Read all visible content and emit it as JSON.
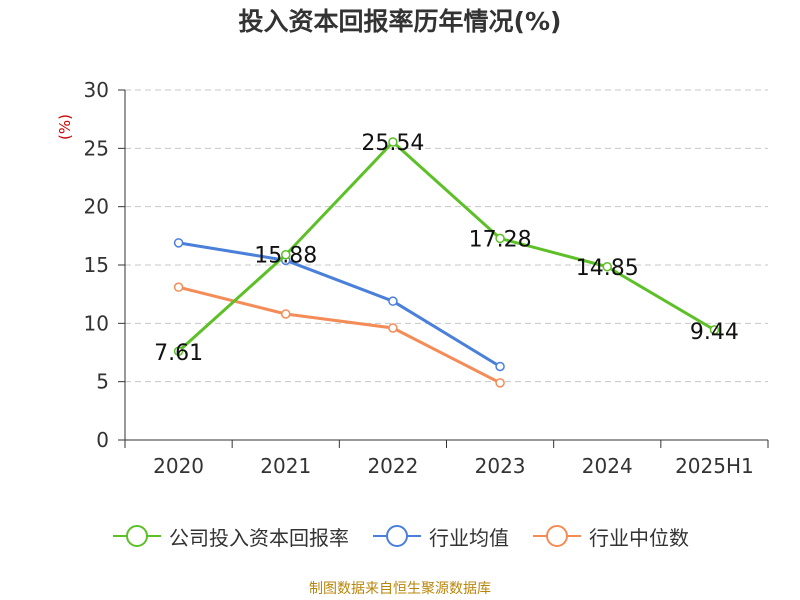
{
  "title": "投入资本回报率历年情况(%)",
  "source": "制图数据来自恒生聚源数据库",
  "chart_data": {
    "type": "line",
    "title": "投入资本回报率历年情况(%)",
    "ylabel": "(%)",
    "xlabel": "",
    "ylim": [
      0,
      30
    ],
    "yticks": [
      0,
      5,
      10,
      15,
      20,
      25,
      30
    ],
    "grid": true,
    "legend_position": "bottom",
    "categories": [
      "2020",
      "2021",
      "2022",
      "2023",
      "2024",
      "2025H1"
    ],
    "series": [
      {
        "name": "公司投入资本回报率",
        "color": "#5cc026",
        "values": [
          7.61,
          15.88,
          25.54,
          17.28,
          14.85,
          9.44
        ],
        "show_labels": true
      },
      {
        "name": "行业均值",
        "color": "#4a7fda",
        "values": [
          16.9,
          15.4,
          11.9,
          6.3,
          null,
          null
        ],
        "show_labels": false
      },
      {
        "name": "行业中位数",
        "color": "#f48c57",
        "values": [
          13.1,
          10.8,
          9.6,
          4.9,
          null,
          null
        ],
        "show_labels": false
      }
    ]
  }
}
